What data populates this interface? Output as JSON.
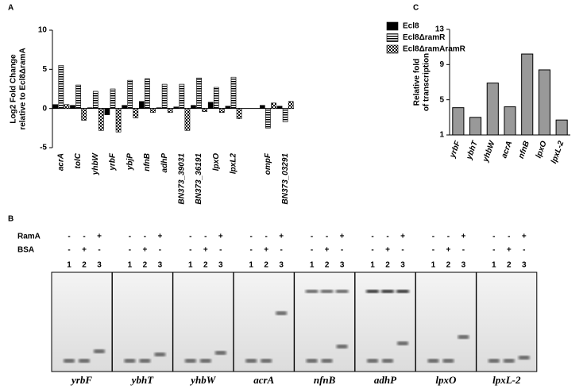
{
  "panel_labels": [
    "A",
    "B",
    "C"
  ],
  "chart_data": [
    {
      "type": "bar",
      "y_label_lines": [
        "Log2 Fold Change",
        "relative to Ecl8ΔramA"
      ],
      "categories": [
        "acrA",
        "tolC",
        "yhbW",
        "yrbF",
        "ybjP",
        "nfnB",
        "adhP",
        "BN373_39031",
        "BN373_36191",
        "lpxO",
        "lpxL2",
        null,
        "ompF",
        "BN373_03291"
      ],
      "series": [
        {
          "name": "Ecl8",
          "color": "#000000",
          "fill": "solid",
          "values": [
            0.5,
            0.4,
            0.1,
            -0.8,
            0.4,
            0.9,
            0.1,
            0.2,
            0.4,
            0.8,
            0.3,
            null,
            0.4,
            0.3
          ]
        },
        {
          "name": "Ecl8ΔramR",
          "color": "#000000",
          "fill": "hstripes",
          "values": [
            5.5,
            3,
            2.2,
            2.5,
            3.6,
            3.8,
            3.1,
            3.1,
            3.9,
            2.7,
            4,
            null,
            -2.5,
            -1.7
          ]
        },
        {
          "name": "Ecl8ΔramAramR",
          "color": "#000000",
          "fill": "checker",
          "values": [
            0.5,
            -1.5,
            -2.8,
            -3,
            -1.2,
            -0.5,
            -0.5,
            -2.8,
            -0.4,
            -0.5,
            -1.3,
            null,
            0.7,
            0.9
          ]
        }
      ],
      "ylim": [
        -5,
        10
      ],
      "yticks": [
        -5,
        0,
        5,
        10
      ],
      "legend": "top-right"
    },
    {
      "type": "bar",
      "y_label_lines": [
        "Relative fold",
        "of transcription"
      ],
      "categories": [
        "yrbF",
        "ybhT",
        "yhbW",
        "acrA",
        "nfnB",
        "lpxO",
        "lpxL-2"
      ],
      "values": [
        4.1,
        3.0,
        6.9,
        4.2,
        10.2,
        8.4,
        2.7
      ],
      "color": "#999999",
      "ylim": [
        1,
        13
      ],
      "yticks": [
        1,
        5,
        9,
        13
      ]
    }
  ],
  "gel": {
    "row_labels": [
      "RamA",
      "BSA"
    ],
    "panels": [
      {
        "gene": "yrbF",
        "ramA": [
          "-",
          "-",
          "+"
        ],
        "bsa": [
          "-",
          "+",
          "-"
        ],
        "lanes": [
          "1",
          "2",
          "3"
        ]
      },
      {
        "gene": "ybhT",
        "ramA": [
          "-",
          "-",
          "+"
        ],
        "bsa": [
          "-",
          "+",
          "-"
        ],
        "lanes": [
          "1",
          "2",
          "3"
        ]
      },
      {
        "gene": "yhbW",
        "ramA": [
          "-",
          "-",
          "+"
        ],
        "bsa": [
          "-",
          "+",
          "-"
        ],
        "lanes": [
          "1",
          "2",
          "3"
        ]
      },
      {
        "gene": "acrA",
        "ramA": [
          "-",
          "-",
          "+"
        ],
        "bsa": [
          "-",
          "+",
          "-"
        ],
        "lanes": [
          "1",
          "2",
          "3"
        ]
      },
      {
        "gene": "nfnB",
        "ramA": [
          "-",
          "-",
          "+"
        ],
        "bsa": [
          "-",
          "+",
          "-"
        ],
        "lanes": [
          "1",
          "2",
          "3"
        ]
      },
      {
        "gene": "adhP",
        "ramA": [
          "-",
          "-",
          "+"
        ],
        "bsa": [
          "-",
          "+",
          "-"
        ],
        "lanes": [
          "1",
          "2",
          "3"
        ]
      },
      {
        "gene": "lpxO",
        "ramA": [
          "-",
          "-",
          "+"
        ],
        "bsa": [
          "-",
          "+",
          "-"
        ],
        "lanes": [
          "1",
          "2",
          "3"
        ]
      },
      {
        "gene": "lpxL-2",
        "ramA": [
          "-",
          "-",
          "+"
        ],
        "bsa": [
          "-",
          "+",
          "-"
        ],
        "lanes": [
          "1",
          "2",
          "3"
        ]
      }
    ]
  }
}
